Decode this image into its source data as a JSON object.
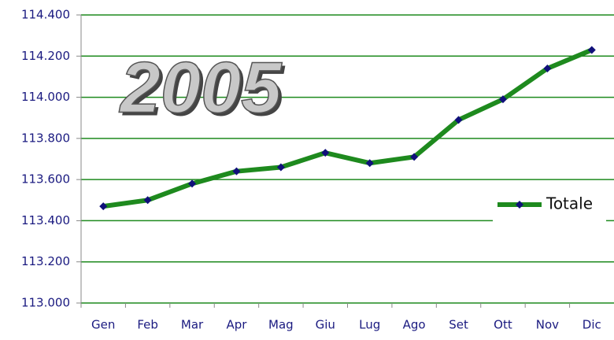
{
  "chart_data": {
    "type": "line",
    "title": "2005",
    "categories": [
      "Gen",
      "Feb",
      "Mar",
      "Apr",
      "Mag",
      "Giu",
      "Lug",
      "Ago",
      "Set",
      "Ott",
      "Nov",
      "Dic"
    ],
    "series": [
      {
        "name": "Totale",
        "color": "#1e8a1e",
        "marker_color": "#10107a",
        "values": [
          113470,
          113500,
          113580,
          113640,
          113660,
          113730,
          113680,
          113710,
          113890,
          113990,
          114140,
          114230
        ]
      }
    ],
    "ylim": [
      113000,
      114400
    ],
    "yticks": [
      {
        "value": 113000,
        "label": "113.000"
      },
      {
        "value": 113200,
        "label": "113.200"
      },
      {
        "value": 113400,
        "label": "113.400"
      },
      {
        "value": 113600,
        "label": "113.600"
      },
      {
        "value": 113800,
        "label": "113.800"
      },
      {
        "value": 114000,
        "label": "114.000"
      },
      {
        "value": 114200,
        "label": "114.200"
      },
      {
        "value": 114400,
        "label": "114.400"
      }
    ],
    "grid": true,
    "legend": "right"
  }
}
